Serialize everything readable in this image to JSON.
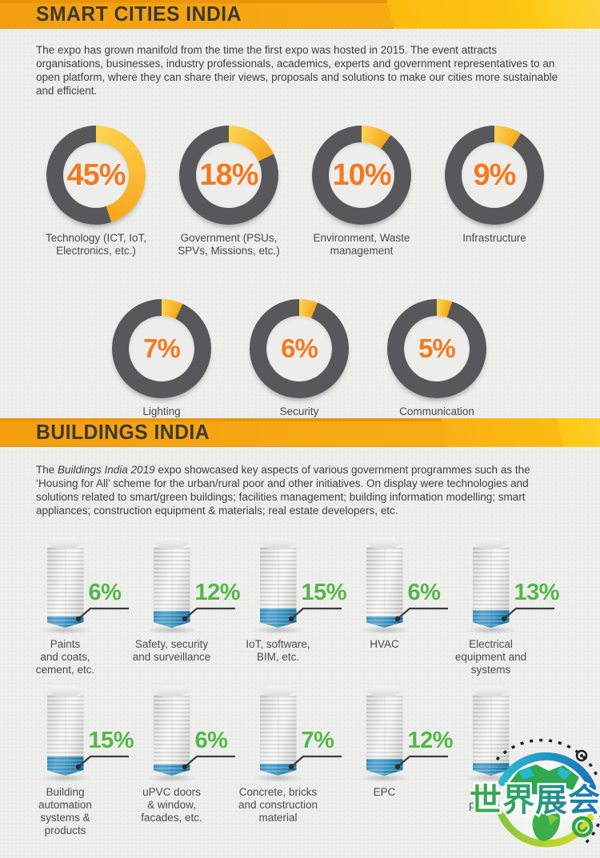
{
  "colors": {
    "header_orange": "#F49E10",
    "header_yellow_bright": "#FFD41F",
    "donut_track": "#58585B",
    "donut_fill": "#F6A71B",
    "donut_fill_light": "#FCD452",
    "donut_value_text": "#F5791D",
    "building_value_text": "#53B748",
    "building_fill_blue": "#1D87BE",
    "text_dark": "#3E3E3E",
    "page_bg": "#ECEDEB"
  },
  "sections": {
    "smart_cities": {
      "title": "SMART CITIES INDIA",
      "description": "The expo has grown manifold from the time the first expo was hosted in 2015. The event attracts organisations, businesses, industry professionals, academics, experts and government representatives to an open platform, where they can share their views, proposals and solutions to make our cities more sustainable and efficient."
    },
    "buildings": {
      "title": "BUILDINGS INDIA",
      "desc_prefix": "The ",
      "desc_italic": "Buildings India 2019",
      "desc_rest": " expo showcased key aspects of various government programmes such as the ‘Housing for All’ scheme for the urban/rural poor and other initiatives. On display were technologies and solutions related to smart/green buildings; facilities management; building information modelling; smart appliances; construction equipment & materials; real estate developers, etc."
    }
  },
  "watermark": {
    "text": "世界展会"
  },
  "chart_data": [
    {
      "type": "pie",
      "variant": "donut",
      "title": "SMART CITIES INDIA",
      "unit": "%",
      "legend_position": "below-each",
      "rows": [
        4,
        3
      ],
      "items": [
        {
          "label": "Technology (ICT, IoT, Electronics, etc.)",
          "display": "Technology (ICT, IoT,\nElectronics, etc.)",
          "value": 45
        },
        {
          "label": "Government (PSUs, SPVs, Missions, etc.)",
          "display": "Government (PSUs,\nSPVs, Missions, etc.)",
          "value": 18
        },
        {
          "label": "Environment, Waste management",
          "display": "Environment, Waste\nmanagement",
          "value": 10
        },
        {
          "label": "Infrastructure",
          "display": "Infrastructure",
          "value": 9
        },
        {
          "label": "Lighting",
          "display": "Lighting",
          "value": 7
        },
        {
          "label": "Security",
          "display": "Security",
          "value": 6
        },
        {
          "label": "Communication",
          "display": "Communication",
          "value": 5
        }
      ]
    },
    {
      "type": "bar",
      "variant": "pictorial-building",
      "title": "BUILDINGS INDIA",
      "unit": "%",
      "rows": [
        5,
        5
      ],
      "items": [
        {
          "label": "Paints and coats, cement, etc.",
          "display": "Paints\nand coats,\ncement, etc.",
          "value": 6
        },
        {
          "label": "Safety, security and surveillance",
          "display": "Safety, security\nand surveillance",
          "value": 12
        },
        {
          "label": "IoT, software, BIM, etc.",
          "display": "IoT, software,\nBIM, etc.",
          "value": 15
        },
        {
          "label": "HVAC",
          "display": "HVAC",
          "value": 6
        },
        {
          "label": "Electrical equipment and systems",
          "display": "Electrical\nequipment and\nsystems",
          "value": 13
        },
        {
          "label": "Building automation systems & products",
          "display": "Building\nautomation\nsystems &\nproducts",
          "value": 15
        },
        {
          "label": "uPVC doors & window, facades, etc.",
          "display": "uPVC doors\n& window,\nfacades, etc.",
          "value": 6
        },
        {
          "label": "Concrete, bricks and construction material",
          "display": "Concrete, bricks\nand construction\nmaterial",
          "value": 7
        },
        {
          "label": "EPC",
          "display": "EPC",
          "value": 12
        },
        {
          "label": "Piping plumbing",
          "display": "Piping\nplumbing",
          "value": null,
          "value_visible": false
        }
      ]
    }
  ]
}
